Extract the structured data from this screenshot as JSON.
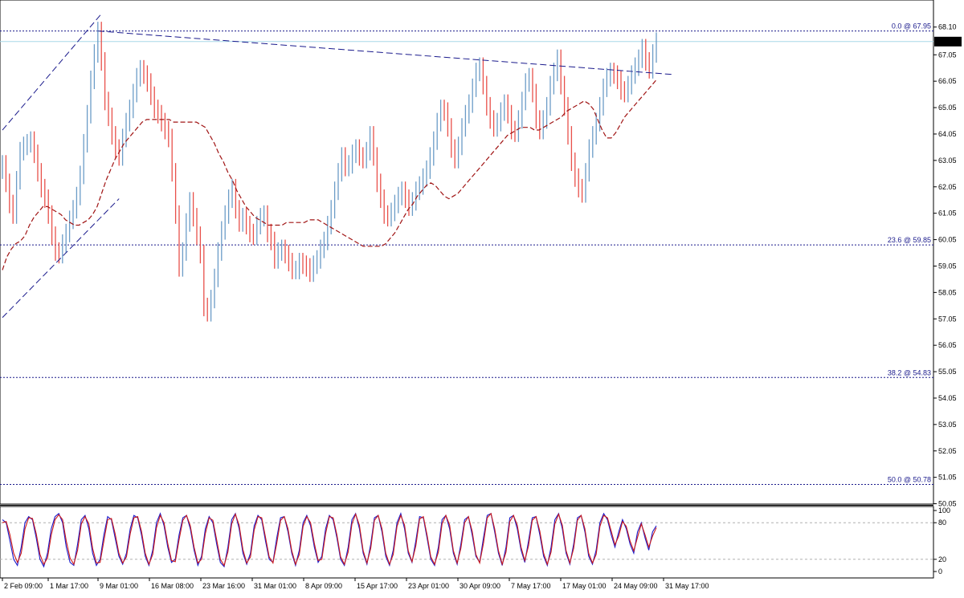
{
  "chart_data": [
    {
      "type": "candlestick",
      "panel": "price",
      "title": "",
      "xlabel": "",
      "ylabel": "",
      "ylim": [
        50.0,
        68.1
      ],
      "y_ticks": [
        "68.10",
        "67.05",
        "66.05",
        "65.05",
        "64.05",
        "63.05",
        "62.05",
        "61.05",
        "60.05",
        "59.05",
        "58.05",
        "57.05",
        "56.05",
        "55.05",
        "54.05",
        "53.05",
        "52.05",
        "51.05",
        "50.05"
      ],
      "current_price": "67.55",
      "fib_levels": [
        {
          "label": "0.0 @ 67.95",
          "value": 67.95
        },
        {
          "label": "23.6 @ 59.85",
          "value": 59.85
        },
        {
          "label": "38.2 @ 54.83",
          "value": 54.83
        },
        {
          "label": "50.0 @ 50.78",
          "value": 50.78
        }
      ],
      "series": [
        {
          "kind": "close",
          "values": [
            62.9,
            62.2,
            61.4,
            61.0,
            62.3,
            63.4,
            63.6,
            63.7,
            63.8,
            63.3,
            62.6,
            62.0,
            61.6,
            61.0,
            60.2,
            59.6,
            59.5,
            59.9,
            60.3,
            60.8,
            61.2,
            61.7,
            62.5,
            63.7,
            64.8,
            66.1,
            67.1,
            67.95,
            66.8,
            65.3,
            64.7,
            64.0,
            63.5,
            63.2,
            63.9,
            64.5,
            65.0,
            65.6,
            66.2,
            66.5,
            66.3,
            66.0,
            65.5,
            65.0,
            64.8,
            64.5,
            64.2,
            63.9,
            62.6,
            61.0,
            59.0,
            59.6,
            60.7,
            61.5,
            60.9,
            60.2,
            59.5,
            57.5,
            57.3,
            57.8,
            58.6,
            59.6,
            60.4,
            61.0,
            61.6,
            62.0,
            61.2,
            60.7,
            60.9,
            60.6,
            60.3,
            60.2,
            60.6,
            60.9,
            61.0,
            60.3,
            60.0,
            59.3,
            59.6,
            59.7,
            59.5,
            59.2,
            58.9,
            58.9,
            59.2,
            59.1,
            59.0,
            58.8,
            59.1,
            59.3,
            59.7,
            60.0,
            60.6,
            61.2,
            61.9,
            62.6,
            63.2,
            62.8,
            62.9,
            63.3,
            63.5,
            63.2,
            63.1,
            63.4,
            64.0,
            63.2,
            62.2,
            61.6,
            61.0,
            60.9,
            61.1,
            61.4,
            61.7,
            61.9,
            61.6,
            61.3,
            61.5,
            61.9,
            62.1,
            62.4,
            62.7,
            63.2,
            63.8,
            64.5,
            65.0,
            64.9,
            64.3,
            63.5,
            63.1,
            63.6,
            64.3,
            64.8,
            65.2,
            65.8,
            66.4,
            66.6,
            65.9,
            65.1,
            64.6,
            64.3,
            64.5,
            64.9,
            65.2,
            64.8,
            64.2,
            64.1,
            64.6,
            65.3,
            66.0,
            66.2,
            65.6,
            64.6,
            64.2,
            64.6,
            65.1,
            65.9,
            66.4,
            66.9,
            65.9,
            65.1,
            64.0,
            63.0,
            62.4,
            62.0,
            61.8,
            62.6,
            63.5,
            64.0,
            64.5,
            65.1,
            65.8,
            66.2,
            66.4,
            66.3,
            66.1,
            65.7,
            65.6,
            65.9,
            66.3,
            66.6,
            66.9,
            67.3,
            66.8,
            66.5,
            67.1,
            67.55
          ]
        },
        {
          "kind": "moving_average",
          "values": [
            58.9,
            59.4,
            59.7,
            59.9,
            60.0,
            60.2,
            60.6,
            60.9,
            61.1,
            61.3,
            61.3,
            61.2,
            61.1,
            61.0,
            60.8,
            60.7,
            60.6,
            60.6,
            60.7,
            60.8,
            61.0,
            61.3,
            61.8,
            62.3,
            62.7,
            63.1,
            63.4,
            63.7,
            63.9,
            64.1,
            64.3,
            64.5,
            64.6,
            64.6,
            64.6,
            64.6,
            64.6,
            64.6,
            64.5,
            64.5,
            64.5,
            64.5,
            64.5,
            64.5,
            64.4,
            64.3,
            64.0,
            63.7,
            63.3,
            63.0,
            62.6,
            62.3,
            61.9,
            61.6,
            61.3,
            61.1,
            60.9,
            60.8,
            60.7,
            60.6,
            60.6,
            60.6,
            60.6,
            60.7,
            60.7,
            60.7,
            60.7,
            60.7,
            60.8,
            60.8,
            60.8,
            60.7,
            60.6,
            60.5,
            60.4,
            60.3,
            60.2,
            60.1,
            60.0,
            59.9,
            59.8,
            59.8,
            59.8,
            59.8,
            59.8,
            59.9,
            60.1,
            60.3,
            60.6,
            60.9,
            61.2,
            61.4,
            61.7,
            61.9,
            62.1,
            62.2,
            62.1,
            61.9,
            61.7,
            61.6,
            61.7,
            61.8,
            62.0,
            62.2,
            62.4,
            62.6,
            62.8,
            63.0,
            63.2,
            63.4,
            63.6,
            63.8,
            64.0,
            64.1,
            64.2,
            64.3,
            64.3,
            64.3,
            64.2,
            64.2,
            64.3,
            64.4,
            64.5,
            64.6,
            64.7,
            64.9,
            65.0,
            65.1,
            65.2,
            65.3,
            65.2,
            65.0,
            64.6,
            64.2,
            63.9,
            63.9,
            64.1,
            64.4,
            64.7,
            64.9,
            65.1,
            65.3,
            65.5,
            65.7,
            65.9,
            66.1
          ]
        }
      ],
      "trendlines": [
        {
          "style": "dashed",
          "points": [
            [
              0,
              64.2
            ],
            [
              28,
              68.6
            ]
          ]
        },
        {
          "style": "dashed",
          "points": [
            [
              0,
              57.1
            ],
            [
              33,
              61.6
            ]
          ]
        },
        {
          "style": "dashed",
          "points": [
            [
              27,
              67.95
            ],
            [
              190,
              66.3
            ]
          ]
        }
      ]
    },
    {
      "type": "line",
      "panel": "stochastic",
      "title": "",
      "xlabel": "",
      "ylabel": "",
      "ylim": [
        0,
        100
      ],
      "y_ticks": [
        "100",
        "80",
        "20",
        "0"
      ],
      "levels": [
        80,
        20
      ],
      "series": [
        {
          "color": "#1a1acc",
          "values": [
            85,
            80,
            50,
            20,
            10,
            40,
            80,
            90,
            85,
            55,
            20,
            8,
            30,
            70,
            90,
            95,
            80,
            40,
            15,
            10,
            45,
            85,
            92,
            70,
            30,
            10,
            20,
            60,
            90,
            85,
            55,
            25,
            12,
            30,
            70,
            92,
            88,
            60,
            25,
            10,
            35,
            80,
            95,
            75,
            40,
            15,
            20,
            60,
            88,
            92,
            70,
            35,
            10,
            25,
            70,
            90,
            80,
            45,
            15,
            8,
            40,
            85,
            95,
            70,
            30,
            12,
            30,
            75,
            92,
            85,
            50,
            20,
            15,
            55,
            88,
            90,
            65,
            30,
            10,
            35,
            80,
            92,
            75,
            40,
            15,
            25,
            70,
            92,
            85,
            55,
            20,
            10,
            40,
            85,
            95,
            70,
            30,
            12,
            45,
            88,
            92,
            65,
            25,
            10,
            35,
            80,
            95,
            70,
            30,
            15,
            50,
            90,
            88,
            55,
            20,
            10,
            40,
            85,
            92,
            70,
            30,
            12,
            45,
            85,
            90,
            60,
            25,
            15,
            55,
            92,
            95,
            65,
            30,
            10,
            40,
            88,
            92,
            70,
            35,
            15,
            50,
            88,
            90,
            60,
            25,
            10,
            40,
            85,
            95,
            70,
            30,
            12,
            45,
            88,
            92,
            65,
            25,
            12,
            35,
            80,
            95,
            85,
            60,
            40,
            65,
            85,
            70,
            45,
            30,
            65,
            80,
            55,
            35,
            65,
            75
          ]
        },
        {
          "color": "#cc1a1a",
          "values": [
            80,
            82,
            60,
            30,
            15,
            30,
            70,
            88,
            87,
            62,
            28,
            12,
            22,
            60,
            85,
            93,
            85,
            50,
            22,
            12,
            35,
            78,
            90,
            78,
            38,
            14,
            15,
            50,
            85,
            87,
            62,
            30,
            14,
            24,
            62,
            88,
            90,
            66,
            30,
            12,
            28,
            72,
            92,
            80,
            46,
            18,
            16,
            52,
            84,
            92,
            75,
            40,
            14,
            20,
            62,
            88,
            84,
            52,
            20,
            10,
            32,
            78,
            94,
            76,
            36,
            14,
            24,
            68,
            90,
            88,
            56,
            24,
            14,
            46,
            84,
            90,
            70,
            34,
            12,
            28,
            74,
            90,
            80,
            46,
            18,
            20,
            62,
            90,
            88,
            60,
            24,
            12,
            32,
            78,
            94,
            76,
            34,
            14,
            38,
            84,
            92,
            70,
            30,
            12,
            28,
            74,
            92,
            76,
            34,
            16,
            42,
            86,
            90,
            60,
            24,
            12,
            32,
            78,
            92,
            76,
            34,
            14,
            38,
            80,
            90,
            66,
            28,
            14,
            46,
            88,
            95,
            70,
            34,
            12,
            32,
            82,
            92,
            76,
            40,
            18,
            42,
            84,
            90,
            66,
            30,
            12,
            32,
            78,
            94,
            76,
            34,
            14,
            38,
            84,
            92,
            70,
            30,
            14,
            28,
            74,
            92,
            88,
            66,
            44,
            58,
            82,
            74,
            50,
            34,
            56,
            78,
            60,
            40,
            58,
            72
          ]
        }
      ]
    },
    {
      "type": "time_axis",
      "x_ticks": [
        "2 Feb 09:00",
        "1 Mar 17:00",
        "9 Mar 01:00",
        "16 Mar 08:00",
        "23 Mar 16:00",
        "31 Mar 01:00",
        "8 Apr 09:00",
        "15 Apr 17:00",
        "23 Apr 01:00",
        "30 Apr 09:00",
        "7 May 17:00",
        "17 May 01:00",
        "24 May 09:00",
        "31 May 17:00"
      ]
    }
  ]
}
